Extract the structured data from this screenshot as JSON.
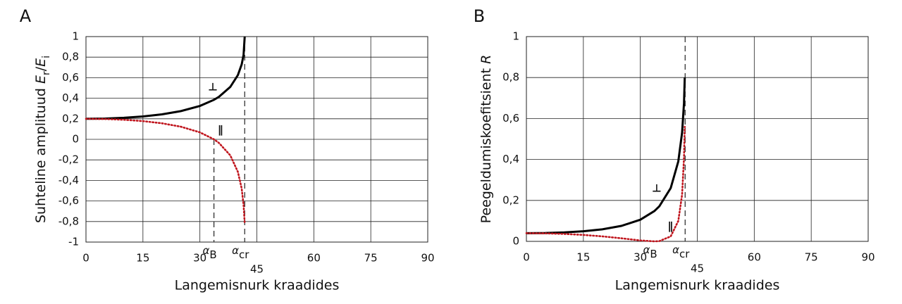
{
  "chart_data": [
    {
      "type": "line",
      "panel": "A",
      "x_label": "Langemisnurk kraadides",
      "y_label": [
        {
          "text": "Suhteline amplituud "
        },
        {
          "text": "E",
          "italic": true
        },
        {
          "text": "r",
          "sub": true
        },
        {
          "text": "/"
        },
        {
          "text": "E",
          "italic": true
        },
        {
          "text": "i",
          "sub": true
        }
      ],
      "x": [
        0,
        5,
        10,
        15,
        20,
        25,
        30,
        33.7,
        35,
        38,
        40,
        41,
        41.5,
        41.8
      ],
      "series": [
        {
          "name": "⊥",
          "color": "#000000",
          "style": "solid",
          "values": [
            0.2,
            0.2023,
            0.2095,
            0.2225,
            0.243,
            0.2748,
            0.3252,
            0.3848,
            0.4136,
            0.51,
            0.6249,
            0.7287,
            0.8216,
            1
          ]
        },
        {
          "name": "∥",
          "color": "#c0161e",
          "style": "dotted",
          "values": [
            0.2,
            0.1977,
            0.1905,
            0.1773,
            0.1562,
            0.1228,
            0.0679,
            0,
            -0.0345,
            -0.1559,
            -0.3163,
            -0.478,
            -0.6389,
            -0.82
          ]
        }
      ],
      "markers": [
        {
          "x": 33.7,
          "label": "α",
          "sub": "B",
          "y_span": [
            0,
            -1
          ]
        },
        {
          "x": 41.8,
          "label": "α",
          "sub": "cr",
          "y_span": [
            1,
            -1
          ]
        }
      ],
      "xlim": [
        0,
        90
      ],
      "xticks": [
        0,
        15,
        30,
        45,
        60,
        75,
        90
      ],
      "ylim": [
        -1,
        1
      ],
      "yticks": [
        -1,
        {
          "value": -0.8,
          "label": "-0,8"
        },
        {
          "value": -0.6,
          "label": "-0,6"
        },
        {
          "value": -0.4,
          "label": "-0,4"
        },
        {
          "value": -0.2,
          "label": "-0,2"
        },
        0,
        {
          "value": 0.2,
          "label": "0,2"
        },
        {
          "value": 0.4,
          "label": "0,4"
        },
        {
          "value": 0.6,
          "label": "0,6"
        },
        {
          "value": 0.8,
          "label": "0,8"
        },
        1
      ],
      "grid": true
    },
    {
      "type": "line",
      "panel": "B",
      "x_label": "Langemisnurk kraadides",
      "y_label": [
        {
          "text": "Peegeldumiskoefitsient "
        },
        {
          "text": "R",
          "italic": true
        }
      ],
      "x": [
        0,
        5,
        10,
        15,
        20,
        25,
        30,
        33.7,
        35,
        38,
        40,
        41,
        41.5,
        41.7
      ],
      "series": [
        {
          "name": "⊥",
          "color": "#000000",
          "style": "solid",
          "values": [
            0.04,
            0.0409,
            0.0439,
            0.0495,
            0.059,
            0.0755,
            0.1058,
            0.1481,
            0.1711,
            0.2601,
            0.3905,
            0.531,
            0.675,
            0.8
          ]
        },
        {
          "name": "∥",
          "color": "#c0161e",
          "style": "dotted",
          "values": [
            0.04,
            0.0391,
            0.0363,
            0.0314,
            0.0244,
            0.0151,
            0.0046,
            0,
            0.0012,
            0.0243,
            0.1,
            0.2285,
            0.4082,
            0.56
          ]
        }
      ],
      "markers": [
        {
          "x": 33.7,
          "label": "α",
          "sub": "B"
        },
        {
          "x": 41.8,
          "label": "α",
          "sub": "cr",
          "y_span": [
            1,
            0
          ]
        }
      ],
      "xlim": [
        0,
        90
      ],
      "xticks": [
        0,
        15,
        30,
        45,
        60,
        75,
        90
      ],
      "ylim": [
        0,
        1
      ],
      "yticks": [
        0,
        {
          "value": 0.2,
          "label": "0,2"
        },
        {
          "value": 0.4,
          "label": "0,4"
        },
        {
          "value": 0.6,
          "label": "0,6"
        },
        {
          "value": 0.8,
          "label": "0,8"
        },
        1
      ],
      "grid": true
    }
  ]
}
